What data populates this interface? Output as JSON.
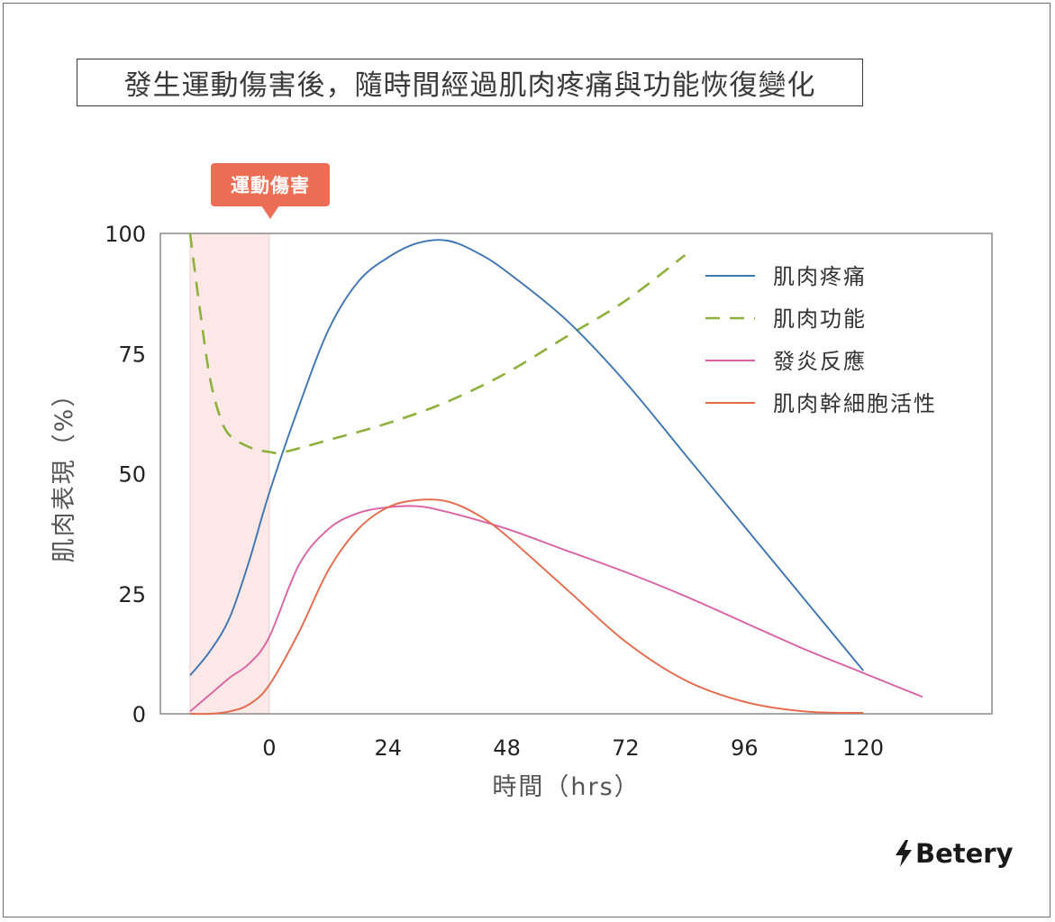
{
  "title": "發生運動傷害後，隨時間經過肌肉疼痛與功能恢復變化",
  "badge": "運動傷害",
  "brand": {
    "name": "Betery",
    "icon": "lightning-bolt-icon"
  },
  "chart_data": {
    "type": "line",
    "xlabel": "時間（hrs）",
    "ylabel": "肌肉表現（%）",
    "xlim": [
      -22,
      146
    ],
    "ylim": [
      0,
      100
    ],
    "x_ticks": [
      0,
      24,
      48,
      72,
      96,
      120
    ],
    "y_ticks": [
      0,
      25,
      50,
      75,
      100
    ],
    "grid": false,
    "legend_position": "top-right",
    "highlight_region": {
      "x_start": -16,
      "x_end": 0,
      "label": "運動傷害",
      "color": "#fbe8e7"
    },
    "series": [
      {
        "name": "肌肉疼痛",
        "color": "#3e75b5",
        "style": "solid",
        "x": [
          -16,
          -12,
          -8,
          -4,
          0,
          6,
          12,
          18,
          24,
          30,
          36,
          42,
          48,
          60,
          72,
          84,
          96,
          108,
          120
        ],
        "y": [
          8,
          13,
          20,
          32,
          46,
          64,
          80,
          90,
          95,
          98,
          98.5,
          96,
          92,
          82,
          69,
          54,
          39,
          24,
          9
        ]
      },
      {
        "name": "肌肉功能",
        "color": "#8db13c",
        "style": "dashed",
        "x": [
          -16,
          -14,
          -12,
          -10,
          -8,
          -4,
          0,
          3,
          12,
          24,
          36,
          48,
          60,
          72,
          84
        ],
        "y": [
          100,
          84,
          70,
          62,
          58,
          55.5,
          54.5,
          54.5,
          57,
          60.5,
          65,
          71,
          78.5,
          86,
          95.5
        ]
      },
      {
        "name": "發炎反應",
        "color": "#dc62a6",
        "style": "solid",
        "x": [
          -16,
          -12,
          -8,
          -4,
          0,
          6,
          12,
          18,
          24,
          30,
          36,
          48,
          60,
          72,
          84,
          96,
          108,
          120,
          132
        ],
        "y": [
          0.5,
          4,
          7.5,
          10.5,
          16,
          31,
          38.5,
          41.8,
          43,
          43.2,
          42,
          38.5,
          34,
          29.5,
          24.5,
          19,
          13.5,
          8.5,
          3.5
        ]
      },
      {
        "name": "肌肉幹細胞活性",
        "color": "#e8694a",
        "style": "solid",
        "x": [
          -16,
          -12,
          -8,
          -4,
          0,
          6,
          12,
          18,
          24,
          30,
          36,
          42,
          48,
          60,
          72,
          84,
          96,
          108,
          120
        ],
        "y": [
          0,
          0,
          0.5,
          2,
          6,
          17,
          30,
          38.5,
          43,
          44.5,
          44.2,
          41.5,
          37,
          26,
          15,
          7,
          2.5,
          0.5,
          0.2
        ]
      }
    ]
  }
}
